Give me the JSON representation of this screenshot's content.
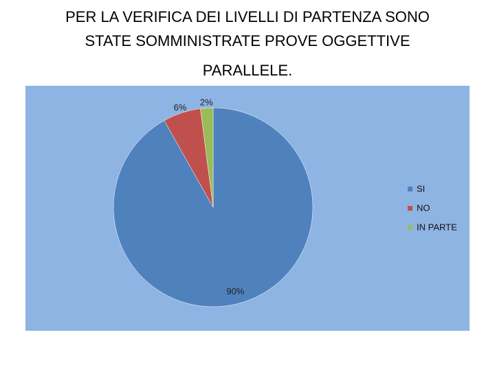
{
  "chart_data": {
    "type": "pie",
    "title": [
      "PER LA VERIFICA DEI LIVELLI DI PARTENZA SONO",
      "STATE SOMMINISTRATE PROVE OGGETTIVE",
      "PARALLELE."
    ],
    "categories": [
      "SI",
      "NO",
      "IN PARTE"
    ],
    "values": [
      90,
      6,
      2
    ],
    "value_labels": [
      "90%",
      "6%",
      "2%"
    ],
    "colors": [
      "#4f81bd",
      "#c0504d",
      "#9bbb59"
    ],
    "legend": "right"
  }
}
